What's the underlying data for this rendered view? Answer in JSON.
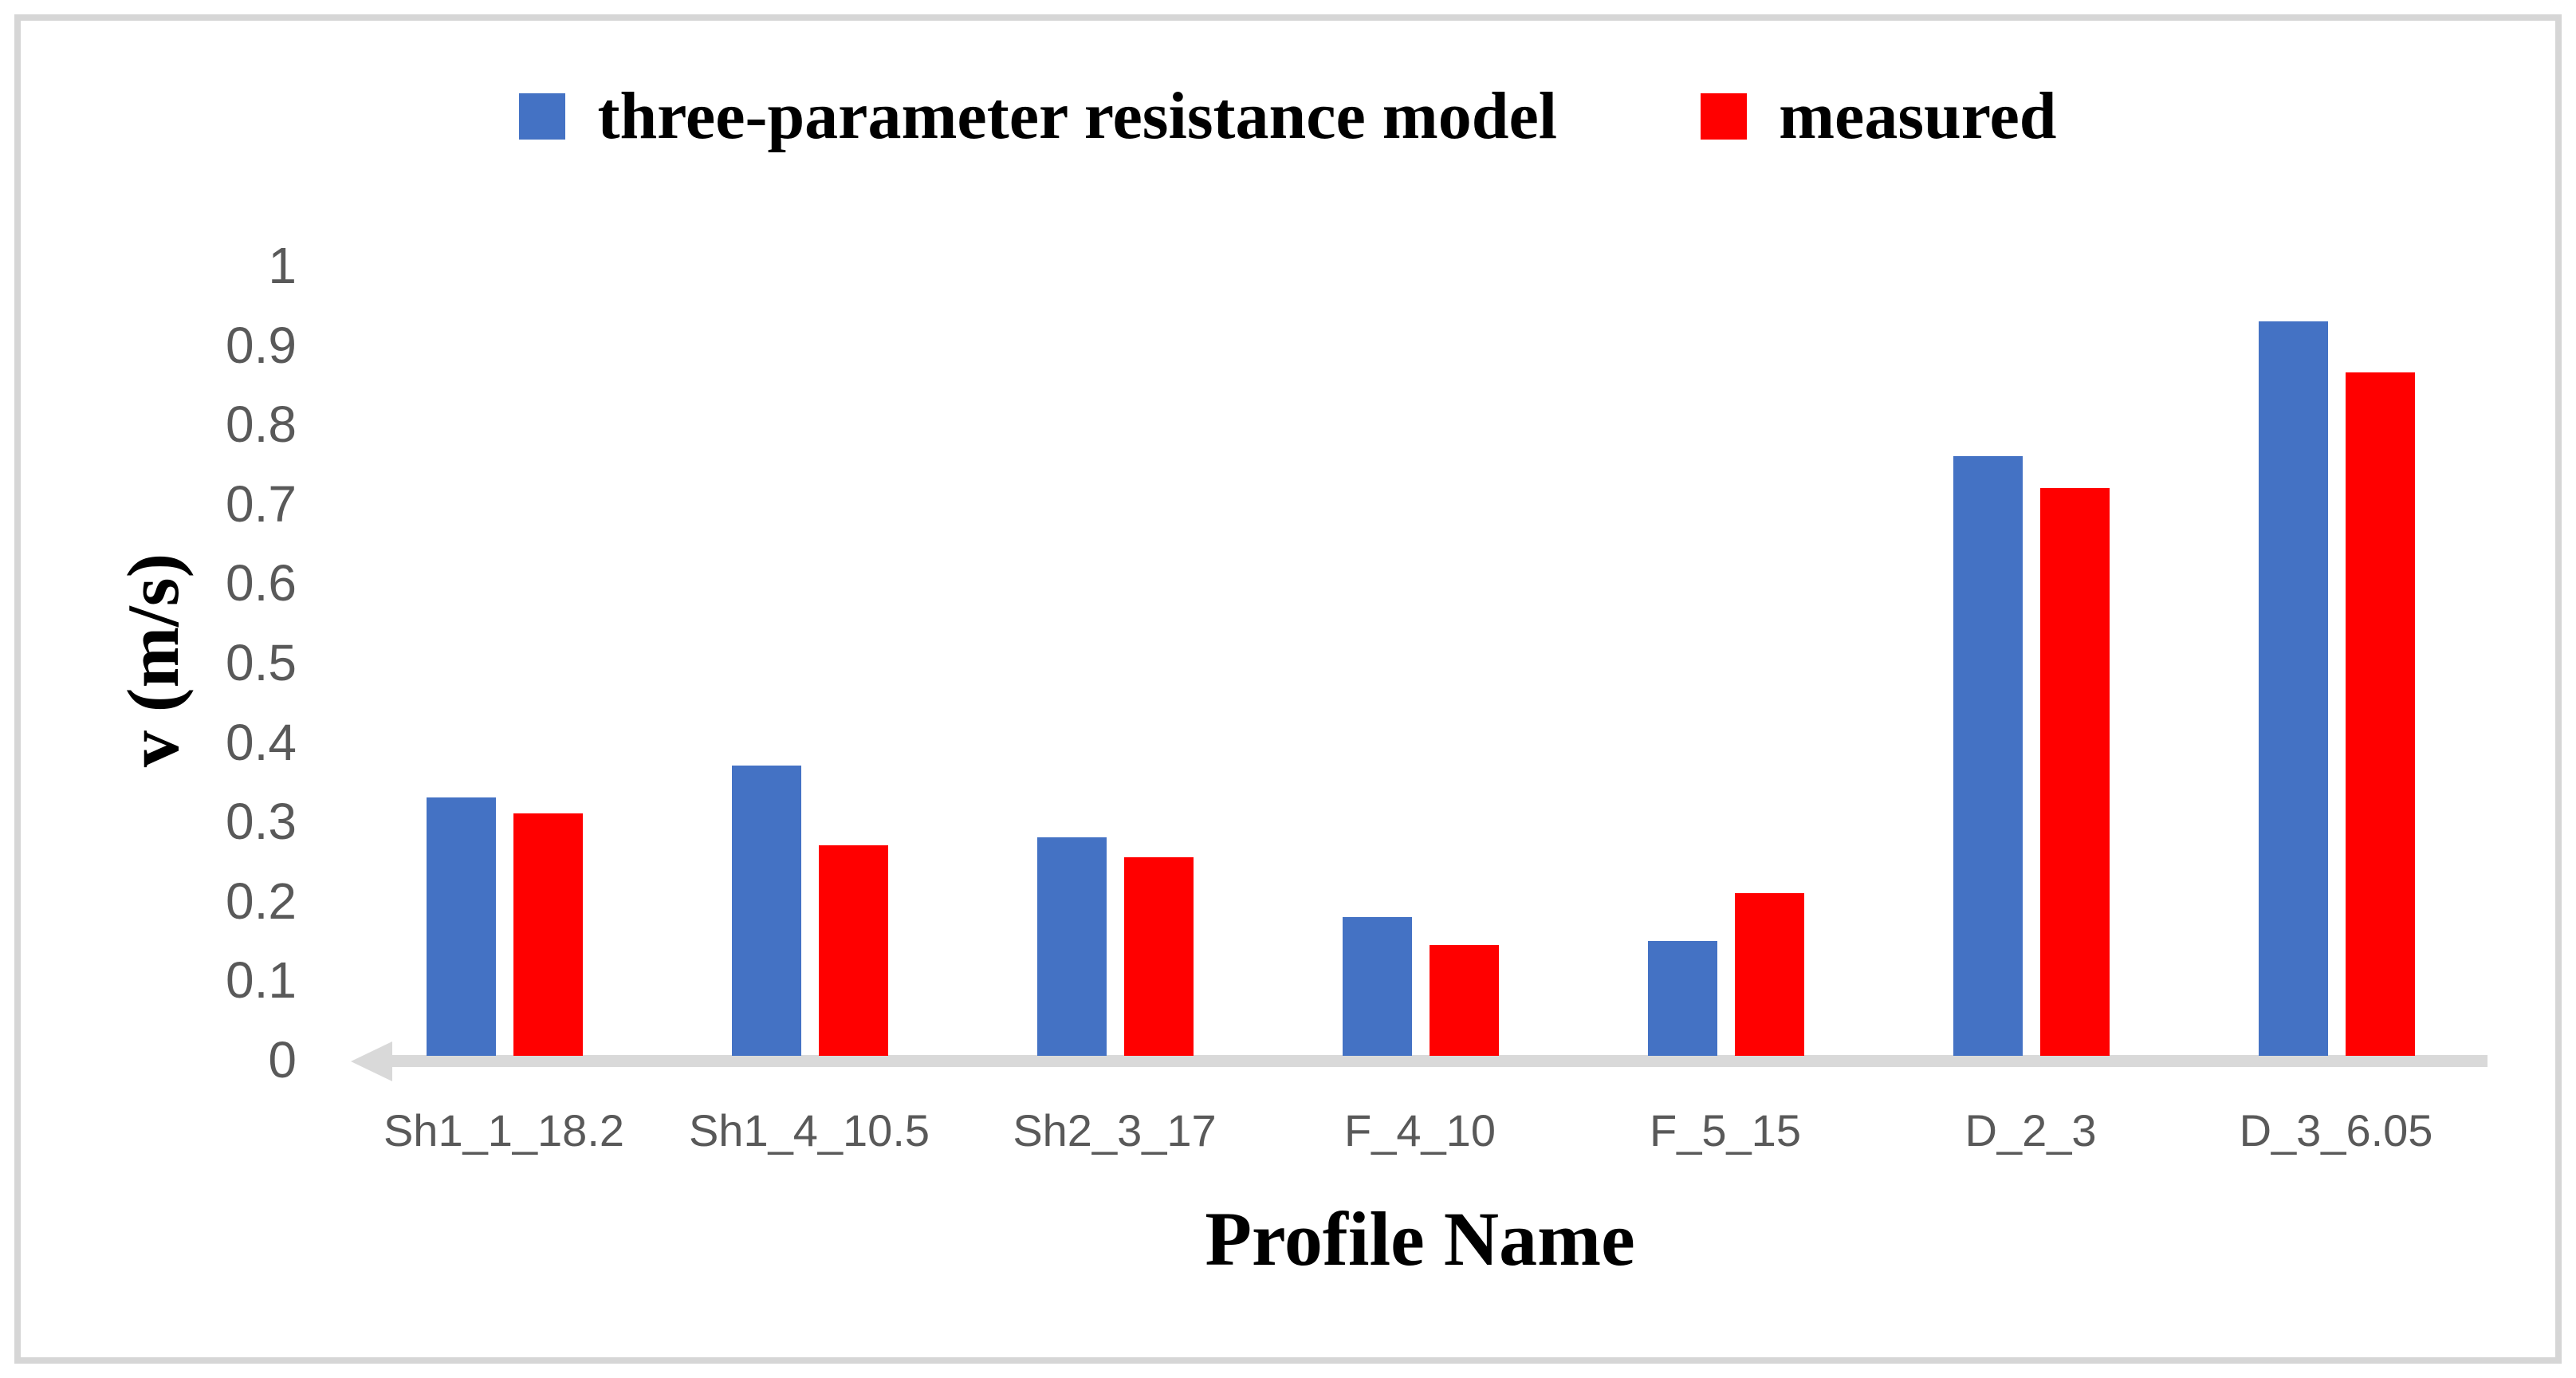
{
  "legend": {
    "items": [
      {
        "label": "three-parameter resistance model",
        "color": "#4472C4"
      },
      {
        "label": "measured",
        "color": "#FF0000"
      }
    ]
  },
  "axes": {
    "y_title": "v (m/s)",
    "x_title": "Profile Name",
    "tick_label_color": "#595959",
    "axis_line_color": "#D9D9D9"
  },
  "chart_data": {
    "type": "bar",
    "title": "",
    "categories": [
      "Sh1_1_18.2",
      "Sh1_4_10.5",
      "Sh2_3_17",
      "F_4_10",
      "F_5_15",
      "D_2_3",
      "D_3_6.05"
    ],
    "series": [
      {
        "name": "three-parameter resistance model",
        "color": "#4472C4",
        "values": [
          0.33,
          0.37,
          0.28,
          0.18,
          0.15,
          0.76,
          0.93
        ]
      },
      {
        "name": "measured",
        "color": "#FF0000",
        "values": [
          0.31,
          0.27,
          0.255,
          0.145,
          0.21,
          0.72,
          0.865
        ]
      }
    ],
    "xlabel": "Profile Name",
    "ylabel": "v (m/s)",
    "ylim": [
      0,
      1
    ],
    "yticks": [
      0,
      0.1,
      0.2,
      0.3,
      0.4,
      0.5,
      0.6,
      0.7,
      0.8,
      0.9,
      1
    ],
    "grid": false,
    "legend_position": "top-center"
  }
}
